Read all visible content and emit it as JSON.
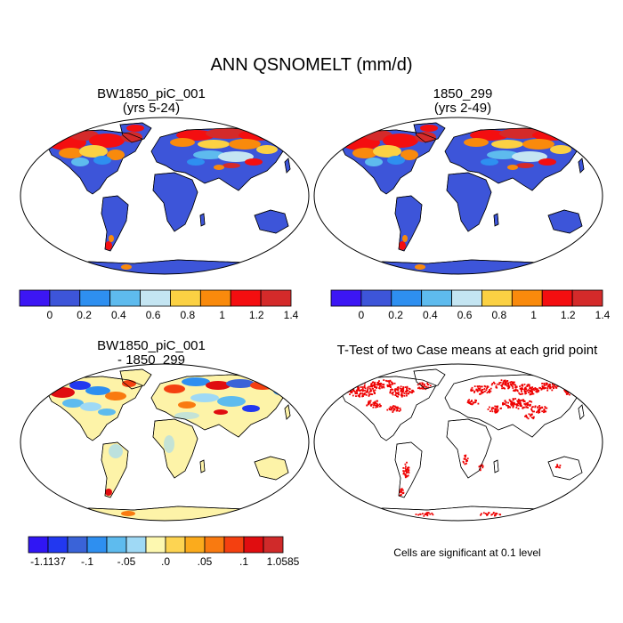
{
  "figure": {
    "title": "ANN QSNOMELT (mm/d)",
    "note": "Cells are significant at 0.1 level"
  },
  "panels": {
    "top_left": {
      "title_line1": "BW1850_piC_001",
      "title_line2": "(yrs 5-24)"
    },
    "top_right": {
      "title_line1": "1850_299",
      "title_line2": "(yrs 2-49)"
    },
    "bottom_left": {
      "title_line1": "BW1850_piC_001",
      "title_line2": "- 1850_299"
    },
    "bottom_right": {
      "title_line1": "T-Test of two Case means at each grid point"
    }
  },
  "colorbars": {
    "absolute": {
      "colors": [
        "#3c16f4",
        "#3d55d9",
        "#2e8ff0",
        "#5ebbee",
        "#c4e5f2",
        "#fbd143",
        "#f98a0c",
        "#f40e10",
        "#d42a2a"
      ],
      "labels": [
        "0",
        "0.2",
        "0.4",
        "0.6",
        "0.8",
        "1",
        "1.2",
        "1.4"
      ]
    },
    "difference": {
      "colors": [
        "#3016f4",
        "#2238f0",
        "#3a63d8",
        "#2e8ff0",
        "#5ebbee",
        "#9fd9f5",
        "#fdf8b0",
        "#fdd452",
        "#fbab1c",
        "#f97a10",
        "#f44010",
        "#e00d10",
        "#d02a2a"
      ],
      "labels": [
        "-1.1137",
        "-.1",
        "-.05",
        ".0",
        ".05",
        ".1",
        "1.0585"
      ]
    }
  },
  "colors": {
    "ocean": "#ffffff",
    "land_low": "#3d55d9",
    "land_diff_neutral": "#fdf3a8",
    "significance": "#ee0000"
  }
}
